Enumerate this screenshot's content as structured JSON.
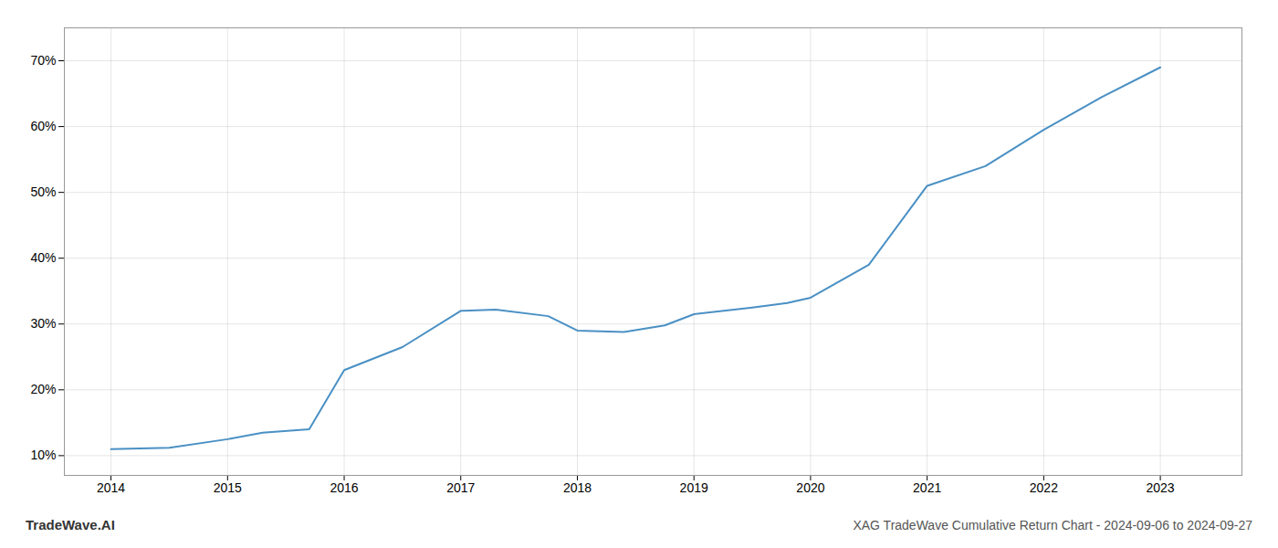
{
  "chart_data": {
    "type": "line",
    "title": "XAG TradeWave Cumulative Return Chart - 2024-09-06 to 2024-09-27",
    "annotations": [
      "TradeWave.AI"
    ],
    "x": [
      2014.0,
      2014.5,
      2015.0,
      2015.3,
      2015.7,
      2016.0,
      2016.5,
      2017.0,
      2017.3,
      2017.75,
      2018.0,
      2018.4,
      2018.75,
      2019.0,
      2019.5,
      2019.8,
      2020.0,
      2020.5,
      2021.0,
      2021.5,
      2022.0,
      2022.5,
      2023.0
    ],
    "values": [
      11.0,
      11.2,
      12.5,
      13.5,
      14.0,
      23.0,
      26.5,
      32.0,
      32.2,
      31.2,
      29.0,
      28.8,
      29.8,
      31.5,
      32.5,
      33.2,
      34.0,
      39.0,
      51.0,
      54.0,
      59.5,
      64.5,
      69.0
    ],
    "color": "#4a90c4",
    "xlim": [
      2013.6,
      2023.7
    ],
    "ylim": [
      7,
      75
    ],
    "xticks": [
      2014,
      2015,
      2016,
      2017,
      2018,
      2019,
      2020,
      2021,
      2022,
      2023
    ],
    "yticks": [
      {
        "value": 10,
        "label": "10%"
      },
      {
        "value": 20,
        "label": "20%"
      },
      {
        "value": 30,
        "label": "30%"
      },
      {
        "value": 40,
        "label": "40%"
      },
      {
        "value": 50,
        "label": "50%"
      },
      {
        "value": 60,
        "label": "60%"
      },
      {
        "value": 70,
        "label": "70%"
      }
    ],
    "grid": true
  }
}
